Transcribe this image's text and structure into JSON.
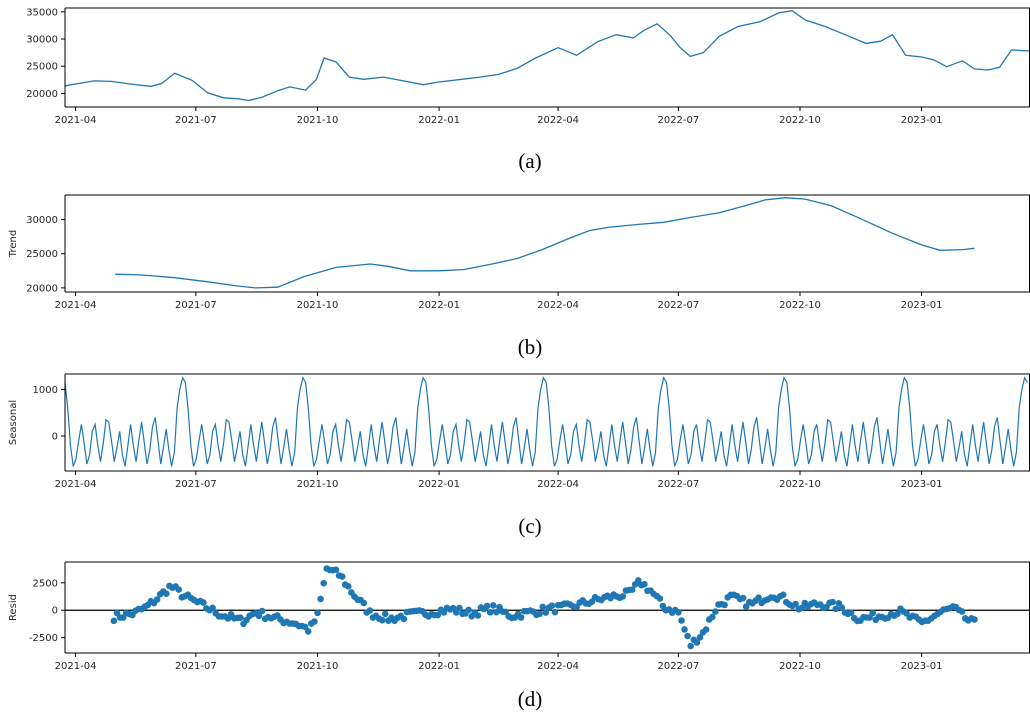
{
  "figure": {
    "x_range": [
      "2021-03-24",
      "2023-03-24"
    ],
    "x_ticks": [
      "2021-04",
      "2021-07",
      "2021-10",
      "2022-01",
      "2022-04",
      "2022-07",
      "2022-10",
      "2023-01"
    ]
  },
  "chart_data": [
    {
      "caption": "(a)",
      "type": "line",
      "ylabel": "",
      "ylim": [
        17500,
        35700
      ],
      "y_ticks": [
        20000,
        25000,
        30000,
        35000
      ],
      "color": "#1f77b4",
      "x": [
        "2021-03-24",
        "2021-04-05",
        "2021-04-15",
        "2021-04-28",
        "2021-05-10",
        "2021-05-20",
        "2021-05-28",
        "2021-06-05",
        "2021-06-15",
        "2021-06-28",
        "2021-07-10",
        "2021-07-22",
        "2021-08-02",
        "2021-08-10",
        "2021-08-20",
        "2021-09-01",
        "2021-09-10",
        "2021-09-22",
        "2021-09-30",
        "2021-10-06",
        "2021-10-15",
        "2021-10-25",
        "2021-11-05",
        "2021-11-20",
        "2021-12-05",
        "2021-12-20",
        "2022-01-01",
        "2022-01-15",
        "2022-02-01",
        "2022-02-15",
        "2022-03-01",
        "2022-03-15",
        "2022-04-01",
        "2022-04-15",
        "2022-05-01",
        "2022-05-15",
        "2022-05-28",
        "2022-06-05",
        "2022-06-15",
        "2022-06-25",
        "2022-07-02",
        "2022-07-10",
        "2022-07-20",
        "2022-08-01",
        "2022-08-15",
        "2022-09-01",
        "2022-09-15",
        "2022-09-25",
        "2022-10-05",
        "2022-10-20",
        "2022-11-05",
        "2022-11-20",
        "2022-12-01",
        "2022-12-10",
        "2022-12-20",
        "2023-01-01",
        "2023-01-10",
        "2023-01-20",
        "2023-02-01",
        "2023-02-10",
        "2023-02-20",
        "2023-03-01",
        "2023-03-10",
        "2023-03-24"
      ],
      "values": [
        21400,
        21900,
        22300,
        22200,
        21800,
        21500,
        21300,
        21800,
        23700,
        22400,
        20100,
        19200,
        19000,
        18700,
        19300,
        20500,
        21200,
        20600,
        22500,
        26500,
        25800,
        23000,
        22600,
        23000,
        22300,
        21600,
        22100,
        22500,
        23000,
        23500,
        24600,
        26500,
        28400,
        27000,
        29500,
        30800,
        30200,
        31600,
        32800,
        30600,
        28500,
        26800,
        27500,
        30500,
        32300,
        33200,
        34800,
        35200,
        33500,
        32300,
        30700,
        29200,
        29600,
        30800,
        27000,
        26700,
        26200,
        24900,
        26000,
        24500,
        24300,
        24800,
        28000,
        27800
      ]
    },
    {
      "caption": "(b)",
      "type": "line",
      "ylabel": "Trend",
      "ylim": [
        19400,
        33600
      ],
      "y_ticks": [
        20000,
        25000,
        30000
      ],
      "color": "#1f77b4",
      "x": [
        "2021-05-01",
        "2021-05-20",
        "2021-06-15",
        "2021-07-10",
        "2021-08-01",
        "2021-08-15",
        "2021-09-01",
        "2021-09-20",
        "2021-10-15",
        "2021-11-10",
        "2021-11-25",
        "2021-12-10",
        "2022-01-01",
        "2022-01-20",
        "2022-02-10",
        "2022-03-01",
        "2022-03-20",
        "2022-04-10",
        "2022-04-25",
        "2022-05-10",
        "2022-06-01",
        "2022-06-20",
        "2022-07-10",
        "2022-08-01",
        "2022-08-20",
        "2022-09-05",
        "2022-09-20",
        "2022-10-05",
        "2022-10-25",
        "2022-11-15",
        "2022-12-10",
        "2023-01-01",
        "2023-01-15",
        "2023-02-01",
        "2023-02-10"
      ],
      "values": [
        22000,
        21900,
        21500,
        20900,
        20300,
        20000,
        20100,
        21600,
        23000,
        23500,
        23100,
        22500,
        22500,
        22700,
        23500,
        24300,
        25600,
        27300,
        28400,
        28900,
        29300,
        29600,
        30300,
        31000,
        32000,
        32900,
        33200,
        33000,
        32000,
        30200,
        28000,
        26300,
        25500,
        25600,
        25800
      ]
    },
    {
      "caption": "(c)",
      "type": "line",
      "ylabel": "Seasonal",
      "ylim": [
        -750,
        1330
      ],
      "y_ticks": [
        0,
        1000
      ],
      "color": "#1f77b4",
      "period_days": 91,
      "start": "2021-03-24",
      "end": "2023-03-24",
      "cycle_values": [
        1150,
        600,
        -200,
        -650,
        -500,
        -100,
        250,
        -150,
        -600,
        -400,
        100,
        250,
        -200,
        -550,
        -150,
        350,
        300,
        -100,
        -550,
        -250,
        100,
        -400,
        -650,
        -200,
        250,
        -200,
        -550,
        -100,
        300,
        -150,
        -600,
        -300,
        200,
        400,
        -100,
        -600,
        -250,
        150,
        -300,
        -650,
        -350,
        600,
        1000,
        1250
      ]
    },
    {
      "caption": "(d)",
      "type": "scatter",
      "ylabel": "Resid",
      "ylim": [
        -3900,
        4400
      ],
      "y_ticks": [
        -2500,
        0,
        2500
      ],
      "color": "#1f77b4",
      "baseline": 0,
      "anchors_x": [
        "2021-04-30",
        "2021-05-15",
        "2021-05-25",
        "2021-06-03",
        "2021-06-12",
        "2021-06-22",
        "2021-07-05",
        "2021-07-20",
        "2021-08-05",
        "2021-08-15",
        "2021-09-01",
        "2021-09-15",
        "2021-09-25",
        "2021-10-01",
        "2021-10-08",
        "2021-10-18",
        "2021-10-28",
        "2021-11-10",
        "2021-11-25",
        "2021-12-10",
        "2021-12-25",
        "2022-01-10",
        "2022-01-25",
        "2022-02-10",
        "2022-02-25",
        "2022-03-10",
        "2022-03-25",
        "2022-04-10",
        "2022-04-25",
        "2022-05-10",
        "2022-05-25",
        "2022-06-02",
        "2022-06-10",
        "2022-06-20",
        "2022-07-01",
        "2022-07-10",
        "2022-07-20",
        "2022-07-30",
        "2022-08-10",
        "2022-08-25",
        "2022-09-10",
        "2022-09-20",
        "2022-10-01",
        "2022-10-15",
        "2022-11-01",
        "2022-11-15",
        "2022-12-01",
        "2022-12-15",
        "2023-01-01",
        "2023-01-15",
        "2023-01-25",
        "2023-02-05",
        "2023-02-10"
      ],
      "anchors_y": [
        -600,
        -300,
        300,
        1200,
        2200,
        1300,
        500,
        -400,
        -1000,
        -200,
        -800,
        -1200,
        -1800,
        -500,
        3800,
        3200,
        1500,
        -300,
        -800,
        -400,
        -200,
        100,
        -300,
        200,
        -500,
        -200,
        100,
        300,
        800,
        1200,
        1500,
        2600,
        1800,
        300,
        -200,
        -3200,
        -2000,
        300,
        1200,
        500,
        1500,
        1000,
        200,
        600,
        300,
        -800,
        -500,
        -100,
        -1200,
        -200,
        200,
        -900,
        -1200
      ],
      "count": 280,
      "jitter": 360
    }
  ]
}
